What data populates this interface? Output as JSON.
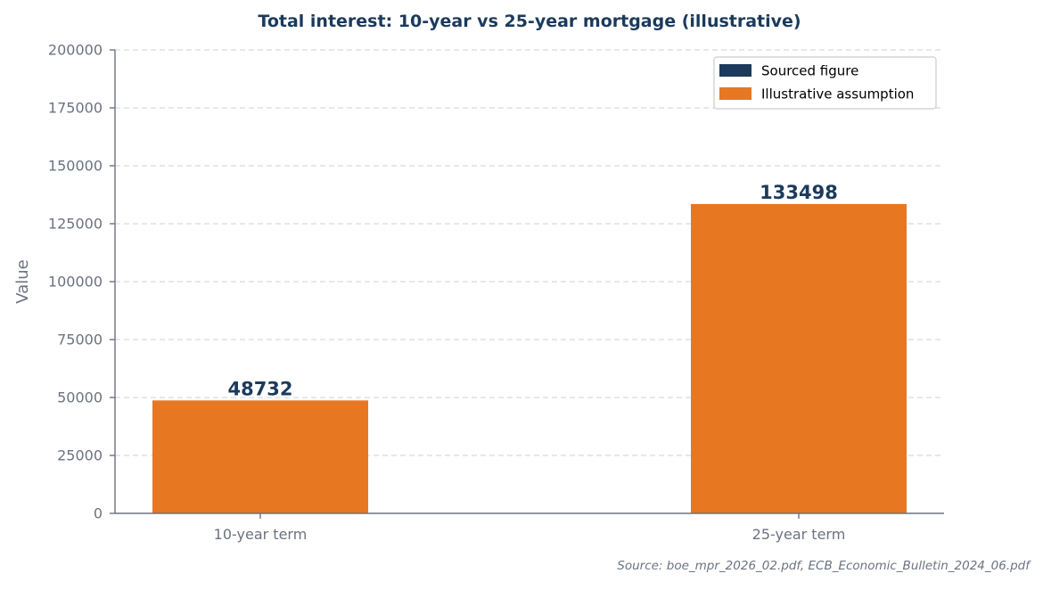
{
  "chart_data": {
    "type": "bar",
    "title": "Total interest: 10-year vs 25-year mortgage (illustrative)",
    "xlabel": "",
    "ylabel": "Value",
    "categories": [
      "10-year term",
      "25-year term"
    ],
    "values": [
      48732,
      133498
    ],
    "data_labels": [
      "48732",
      "133498"
    ],
    "bar_kind": [
      "Illustrative assumption",
      "Illustrative assumption"
    ],
    "ylim": [
      0,
      200000
    ],
    "y_ticks": [
      0,
      25000,
      50000,
      75000,
      100000,
      125000,
      150000,
      175000,
      200000
    ],
    "y_tick_labels": [
      "0",
      "25000",
      "50000",
      "75000",
      "100000",
      "125000",
      "150000",
      "175000",
      "200000"
    ],
    "grid": true,
    "legend": {
      "position": "top-right",
      "entries": [
        {
          "label": "Sourced figure",
          "color": "#1b3a5c"
        },
        {
          "label": "Illustrative assumption",
          "color": "#e87722"
        }
      ]
    },
    "colors": {
      "sourced": "#1b3a5c",
      "illustrative": "#e87722"
    },
    "source_note": "Source: boe_mpr_2026_02.pdf, ECB_Economic_Bulletin_2024_06.pdf"
  }
}
